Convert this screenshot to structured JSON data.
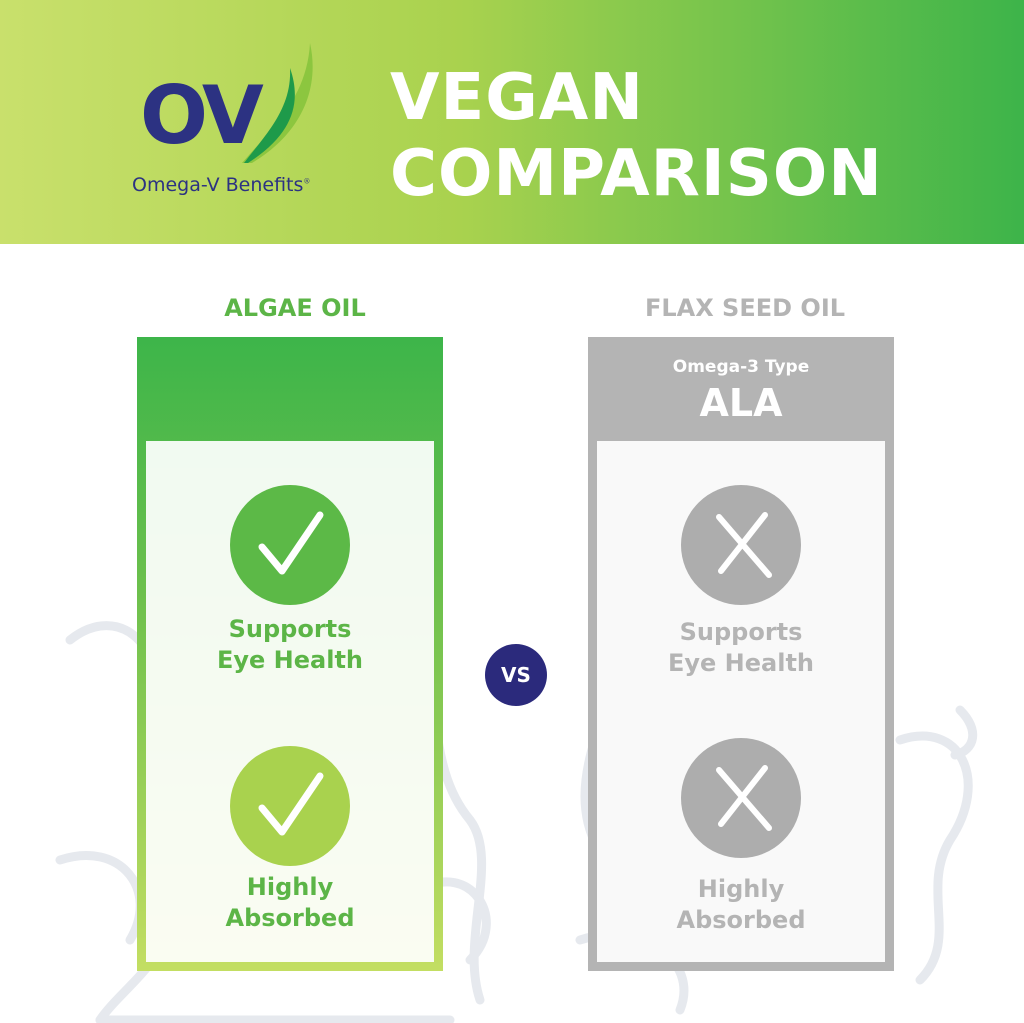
{
  "brand": {
    "logo_text": "OV",
    "name": "Omega-V Benefits",
    "mark": "®"
  },
  "title": {
    "line1": "VEGAN",
    "line2": "COMPARISON"
  },
  "colors": {
    "green": "#3db54a",
    "light_green": "#a9d24e",
    "gray": "#b4b4b4",
    "navy": "#2b2a7c"
  },
  "algae": {
    "label": "ALGAE OIL",
    "features": [
      {
        "icon": "check-icon",
        "text1": "Supports",
        "text2": "Eye Health"
      },
      {
        "icon": "check-icon",
        "text1": "Highly",
        "text2": "Absorbed"
      }
    ]
  },
  "flax": {
    "label": "FLAX SEED OIL",
    "type_label": "Omega-3 Type",
    "type_value": "ALA",
    "features": [
      {
        "icon": "x-icon",
        "text1": "Supports",
        "text2": "Eye Health"
      },
      {
        "icon": "x-icon",
        "text1": "Highly",
        "text2": "Absorbed"
      }
    ]
  },
  "vs": "VS"
}
